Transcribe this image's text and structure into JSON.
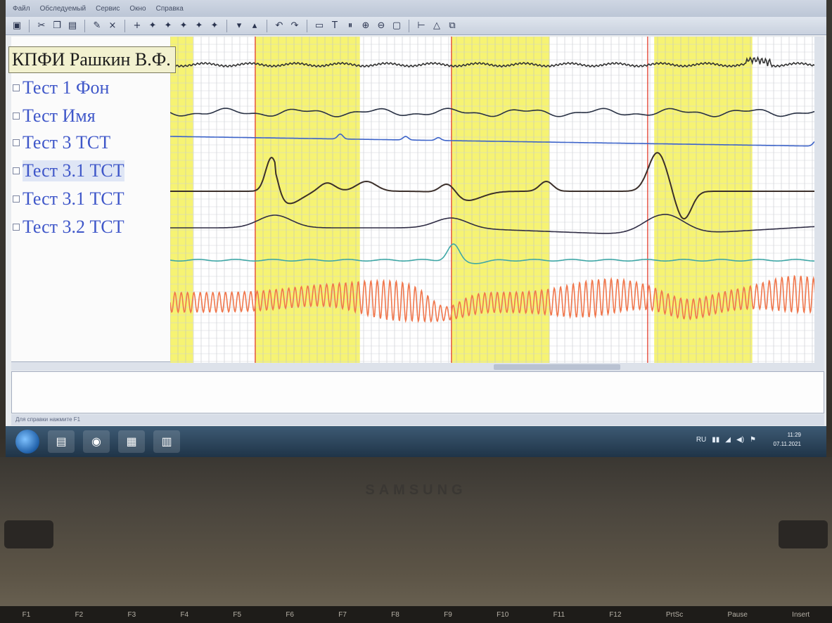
{
  "menu": [
    "Файл",
    "Обследуемый",
    "Сервис",
    "Окно",
    "Справка"
  ],
  "toolbar_icons": [
    "save-icon",
    "cut-icon",
    "copy-icon",
    "paste-icon",
    "pen-icon",
    "close-icon",
    "marker-plus-icon",
    "marker-icon",
    "marker-icon",
    "marker-icon",
    "marker-icon",
    "marker-icon",
    "marker-icon",
    "marker-icon",
    "undo-icon",
    "redo-icon",
    "page-icon",
    "text-icon",
    "pause-icon",
    "zoom-in-icon",
    "zoom-out-icon",
    "fit-icon",
    "cursor-icon",
    "alert-icon",
    "export-icon"
  ],
  "header": {
    "title": "КПФИ Рашкин В.Ф."
  },
  "tests": [
    {
      "label": "Тест 1 Фон"
    },
    {
      "label": "Тест Имя"
    },
    {
      "label": "Тест 3 ТСТ"
    },
    {
      "label": "Тест 3.1 ТСТ",
      "selected": true
    },
    {
      "label": "Тест 3.1 ТСТ"
    },
    {
      "label": "Тест 3.2 ТСТ"
    }
  ],
  "status": {
    "text": "Для справки нажмите F1"
  },
  "taskbar": {
    "apps": [
      "explorer-icon",
      "chrome-icon",
      "office-icon",
      "polygraph-app-icon"
    ],
    "language": "RU",
    "time": "11:29",
    "date": "07.11.2021"
  },
  "laptop": {
    "brand": "SAMSUNG",
    "fkeys": [
      "F1",
      "F2",
      "F3",
      "F4",
      "F5",
      "F6",
      "F7",
      "F8",
      "F9",
      "F10",
      "F11",
      "F12",
      "PrtSc",
      "Pause",
      "Insert"
    ]
  },
  "chart_data": {
    "type": "line",
    "title": "",
    "x_window": [
      0,
      100
    ],
    "highlights": [
      [
        0,
        3.5
      ],
      [
        13,
        29
      ],
      [
        43,
        58
      ],
      [
        74,
        89
      ]
    ],
    "markers": [
      13,
      43,
      73
    ],
    "series": [
      {
        "color": "#333333",
        "kind": "gsr-top"
      },
      {
        "color": "#283043",
        "kind": "smooth"
      },
      {
        "color": "#3c63c9",
        "kind": "flat-spikes"
      },
      {
        "color": "#3b2f2a",
        "kind": "eda-peaks"
      },
      {
        "color": "#2f2c44",
        "kind": "slow"
      },
      {
        "color": "#3ea7a6",
        "kind": "teal"
      },
      {
        "color": "#f0774d",
        "kind": "oscillation"
      }
    ]
  }
}
